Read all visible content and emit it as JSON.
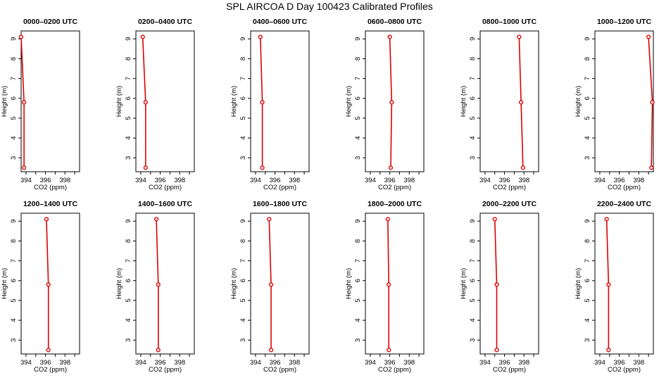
{
  "figure": {
    "title": "SPL AIRCOA D  Day 100423  Calibrated Profiles",
    "line_color": "#dd0000",
    "frame_color": "#000000"
  },
  "chart_data": [
    {
      "type": "line",
      "title": "0000–0200 UTC",
      "xlabel": "CO2 (ppm)",
      "ylabel": "Height (m)",
      "xlim": [
        393.5,
        399.5
      ],
      "ylim": [
        2.3,
        9.4
      ],
      "xticks": [
        394,
        396,
        398
      ],
      "yticks": [
        3,
        4,
        5,
        6,
        7,
        8,
        9
      ],
      "series": [
        {
          "x": [
            393.5,
            393.8,
            393.8
          ],
          "y": [
            9.1,
            5.8,
            2.5
          ]
        }
      ]
    },
    {
      "type": "line",
      "title": "0200–0400 UTC",
      "xlabel": "CO2 (ppm)",
      "ylabel": "Height (m)",
      "xlim": [
        393.5,
        399.5
      ],
      "ylim": [
        2.3,
        9.4
      ],
      "xticks": [
        394,
        396,
        398
      ],
      "yticks": [
        3,
        4,
        5,
        6,
        7,
        8,
        9
      ],
      "series": [
        {
          "x": [
            394.2,
            394.5,
            394.5
          ],
          "y": [
            9.1,
            5.8,
            2.5
          ]
        }
      ]
    },
    {
      "type": "line",
      "title": "0400–0600 UTC",
      "xlabel": "CO2 (ppm)",
      "ylabel": "Height (m)",
      "xlim": [
        393.5,
        399.5
      ],
      "ylim": [
        2.3,
        9.4
      ],
      "xticks": [
        394,
        396,
        398
      ],
      "yticks": [
        3,
        4,
        5,
        6,
        7,
        8,
        9
      ],
      "series": [
        {
          "x": [
            394.5,
            394.7,
            394.7
          ],
          "y": [
            9.1,
            5.8,
            2.5
          ]
        }
      ]
    },
    {
      "type": "line",
      "title": "0600–0800 UTC",
      "xlabel": "CO2 (ppm)",
      "ylabel": "Height (m)",
      "xlim": [
        393.5,
        399.5
      ],
      "ylim": [
        2.3,
        9.4
      ],
      "xticks": [
        394,
        396,
        398
      ],
      "yticks": [
        3,
        4,
        5,
        6,
        7,
        8,
        9
      ],
      "series": [
        {
          "x": [
            396.0,
            396.2,
            396.1
          ],
          "y": [
            9.1,
            5.8,
            2.5
          ]
        }
      ]
    },
    {
      "type": "line",
      "title": "0800–1000 UTC",
      "xlabel": "CO2 (ppm)",
      "ylabel": "Height (m)",
      "xlim": [
        393.5,
        399.5
      ],
      "ylim": [
        2.3,
        9.4
      ],
      "xticks": [
        394,
        396,
        398
      ],
      "yticks": [
        3,
        4,
        5,
        6,
        7,
        8,
        9
      ],
      "series": [
        {
          "x": [
            397.5,
            397.7,
            397.9
          ],
          "y": [
            9.1,
            5.8,
            2.5
          ]
        }
      ]
    },
    {
      "type": "line",
      "title": "1000–1200 UTC",
      "xlabel": "CO2 (ppm)",
      "ylabel": "Height (m)",
      "xlim": [
        393.5,
        399.5
      ],
      "ylim": [
        2.3,
        9.4
      ],
      "xticks": [
        394,
        396,
        398
      ],
      "yticks": [
        3,
        4,
        5,
        6,
        7,
        8,
        9
      ],
      "series": [
        {
          "x": [
            399.0,
            399.4,
            399.3
          ],
          "y": [
            9.1,
            5.8,
            2.5
          ]
        }
      ]
    },
    {
      "type": "line",
      "title": "1200–1400 UTC",
      "xlabel": "CO2 (ppm)",
      "ylabel": "Height (m)",
      "xlim": [
        393.5,
        399.5
      ],
      "ylim": [
        2.3,
        9.4
      ],
      "xticks": [
        394,
        396,
        398
      ],
      "yticks": [
        3,
        4,
        5,
        6,
        7,
        8,
        9
      ],
      "series": [
        {
          "x": [
            396.1,
            396.3,
            396.3
          ],
          "y": [
            9.1,
            5.8,
            2.5
          ]
        }
      ]
    },
    {
      "type": "line",
      "title": "1400–1600 UTC",
      "xlabel": "CO2 (ppm)",
      "ylabel": "Height (m)",
      "xlim": [
        393.5,
        399.5
      ],
      "ylim": [
        2.3,
        9.4
      ],
      "xticks": [
        394,
        396,
        398
      ],
      "yticks": [
        3,
        4,
        5,
        6,
        7,
        8,
        9
      ],
      "series": [
        {
          "x": [
            395.6,
            395.8,
            395.8
          ],
          "y": [
            9.1,
            5.8,
            2.5
          ]
        }
      ]
    },
    {
      "type": "line",
      "title": "1600–1800 UTC",
      "xlabel": "CO2 (ppm)",
      "ylabel": "Height (m)",
      "xlim": [
        393.5,
        399.5
      ],
      "ylim": [
        2.3,
        9.4
      ],
      "xticks": [
        394,
        396,
        398
      ],
      "yticks": [
        3,
        4,
        5,
        6,
        7,
        8,
        9
      ],
      "series": [
        {
          "x": [
            395.4,
            395.6,
            395.6
          ],
          "y": [
            9.1,
            5.8,
            2.5
          ]
        }
      ]
    },
    {
      "type": "line",
      "title": "1800–2000 UTC",
      "xlabel": "CO2 (ppm)",
      "ylabel": "Height (m)",
      "xlim": [
        393.5,
        399.5
      ],
      "ylim": [
        2.3,
        9.4
      ],
      "xticks": [
        394,
        396,
        398
      ],
      "yticks": [
        3,
        4,
        5,
        6,
        7,
        8,
        9
      ],
      "series": [
        {
          "x": [
            395.8,
            395.9,
            395.9
          ],
          "y": [
            9.1,
            5.8,
            2.5
          ]
        }
      ]
    },
    {
      "type": "line",
      "title": "2000–2200 UTC",
      "xlabel": "CO2 (ppm)",
      "ylabel": "Height (m)",
      "xlim": [
        393.5,
        399.5
      ],
      "ylim": [
        2.3,
        9.4
      ],
      "xticks": [
        394,
        396,
        398
      ],
      "yticks": [
        3,
        4,
        5,
        6,
        7,
        8,
        9
      ],
      "series": [
        {
          "x": [
            395.0,
            395.2,
            395.2
          ],
          "y": [
            9.1,
            5.8,
            2.5
          ]
        }
      ]
    },
    {
      "type": "line",
      "title": "2200–2400 UTC",
      "xlabel": "CO2 (ppm)",
      "ylabel": "Height (m)",
      "xlim": [
        393.5,
        399.5
      ],
      "ylim": [
        2.3,
        9.4
      ],
      "xticks": [
        394,
        396,
        398
      ],
      "yticks": [
        3,
        4,
        5,
        6,
        7,
        8,
        9
      ],
      "series": [
        {
          "x": [
            394.7,
            394.9,
            394.9
          ],
          "y": [
            9.1,
            5.8,
            2.5
          ]
        }
      ]
    }
  ]
}
